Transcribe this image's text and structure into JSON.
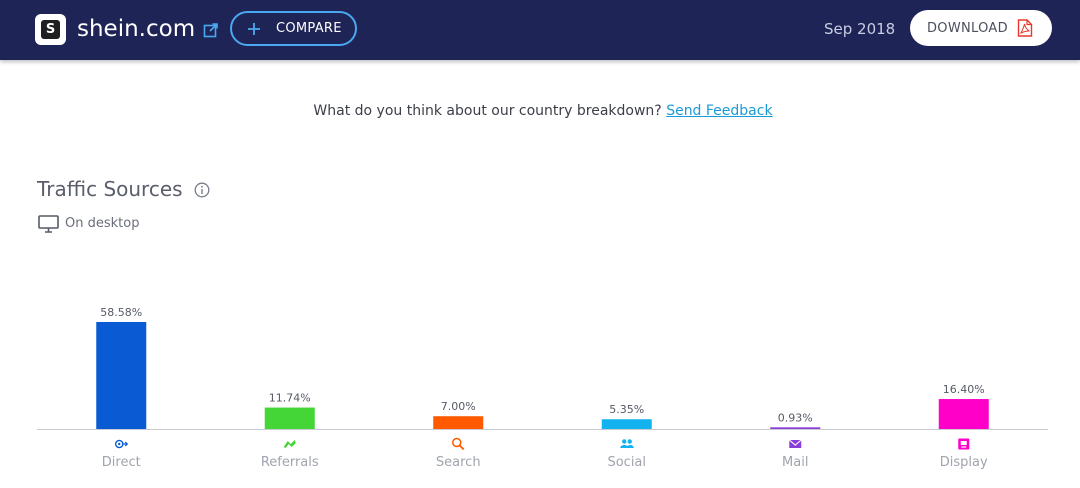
{
  "header": {
    "site_name": "shein.com",
    "logo_letter": "S",
    "compare_label": "COMPARE",
    "date": "Sep 2018",
    "download_label": "DOWNLOAD"
  },
  "feedback": {
    "question": "What do you think about our country breakdown?",
    "link_label": "Send Feedback"
  },
  "section": {
    "title": "Traffic Sources",
    "device": "On desktop"
  },
  "chart_data": {
    "type": "bar",
    "categories": [
      "Direct",
      "Referrals",
      "Search",
      "Social",
      "Mail",
      "Display"
    ],
    "values": [
      58.58,
      11.74,
      7.0,
      5.35,
      0.93,
      16.4
    ],
    "value_labels": [
      "58.58%",
      "11.74%",
      "7.00%",
      "5.35%",
      "0.93%",
      "16.40%"
    ],
    "colors": [
      "#0a5bd3",
      "#44d636",
      "#ff5a00",
      "#12b3ee",
      "#8b3fd8",
      "#ff00c8"
    ],
    "icons": [
      "direct-icon",
      "referrals-icon",
      "search-icon",
      "social-icon",
      "mail-icon",
      "display-icon"
    ],
    "ylim": [
      0,
      58.58
    ]
  }
}
